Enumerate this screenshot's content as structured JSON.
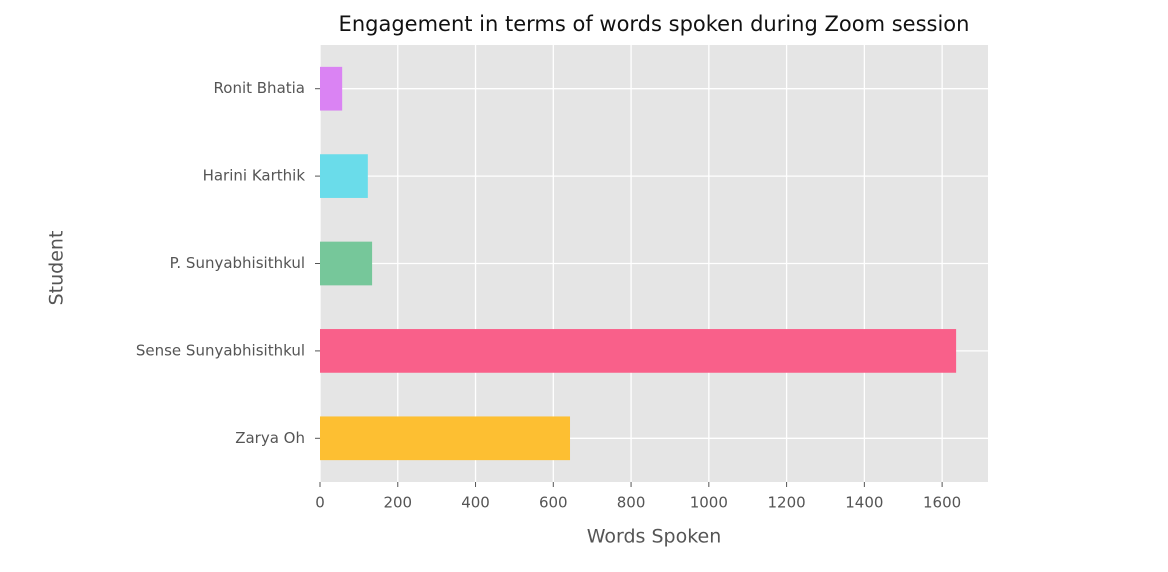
{
  "chart_data": {
    "type": "barh",
    "title": "Engagement in terms of words spoken during Zoom session",
    "x_label": "Words Spoken",
    "y_label": "Student",
    "categories": [
      "Ronit Bhatia",
      "Harini Karthik",
      "P. Sunyabhisithkul",
      "Sense Sunyabhisithkul",
      "Zarya Oh"
    ],
    "values": [
      57,
      123,
      134,
      1636,
      643
    ],
    "colors": [
      "#da83f3",
      "#6adcea",
      "#76c79a",
      "#f9608a",
      "#fdbf32"
    ],
    "xlim": [
      0,
      1718
    ],
    "xticks": [
      0,
      200,
      400,
      600,
      800,
      1000,
      1200,
      1400,
      1600
    ],
    "grid": true
  }
}
